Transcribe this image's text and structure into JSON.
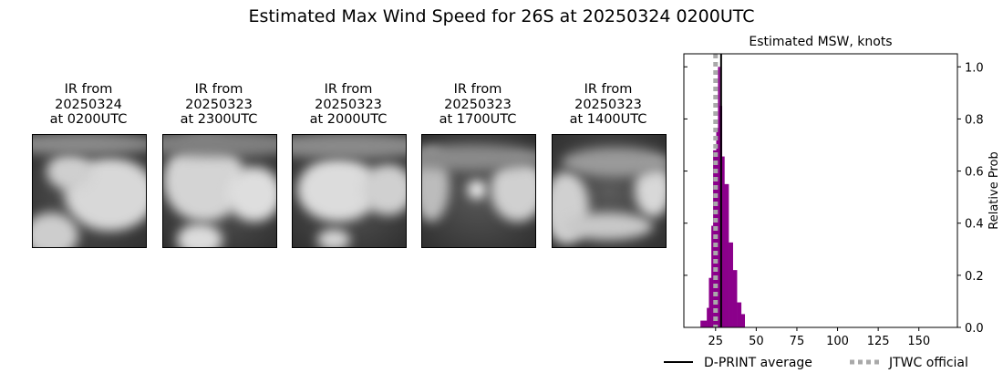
{
  "title": "Estimated Max Wind Speed for 26S at 20250324 0200UTC",
  "ir_panels": [
    {
      "line1": "IR from",
      "line2": "20250324",
      "line3": "at 0200UTC"
    },
    {
      "line1": "IR from",
      "line2": "20250323",
      "line3": "at 2300UTC"
    },
    {
      "line1": "IR from",
      "line2": "20250323",
      "line3": "at 2000UTC"
    },
    {
      "line1": "IR from",
      "line2": "20250323",
      "line3": "at 1700UTC"
    },
    {
      "line1": "IR from",
      "line2": "20250323",
      "line3": "at 1400UTC"
    }
  ],
  "chart_data": {
    "type": "bar",
    "title": "Estimated MSW, knots",
    "xlabel": "",
    "ylabel": "Relative Prob",
    "xlim": [
      5.5,
      173.7
    ],
    "ylim": [
      0,
      1.05
    ],
    "xticks": [
      25,
      50,
      75,
      100,
      125,
      150
    ],
    "yticks": [
      0.0,
      0.2,
      0.4,
      0.6,
      0.8,
      1.0
    ],
    "y_axis_side": "right",
    "grid": false,
    "bin_edges": [
      15.7,
      19.6,
      20.9,
      22.4,
      23.5,
      25.4,
      26.5,
      27.6,
      28.9,
      30.4,
      33.0,
      35.6,
      38.1,
      40.7,
      42.9
    ],
    "values": [
      0.026,
      0.075,
      0.19,
      0.39,
      0.68,
      0.765,
      1.0,
      0.85,
      0.656,
      0.55,
      0.326,
      0.22,
      0.096,
      0.051
    ],
    "bar_color": "#8b008b",
    "dprint_average": 28.4,
    "jtwc_official": 25,
    "legend": [
      {
        "label": "D-PRINT average",
        "style": "solid",
        "color": "#000000"
      },
      {
        "label": "JTWC official",
        "style": "dotted",
        "color": "#a9a9a9"
      }
    ],
    "legend_placement": "bottom-right"
  }
}
